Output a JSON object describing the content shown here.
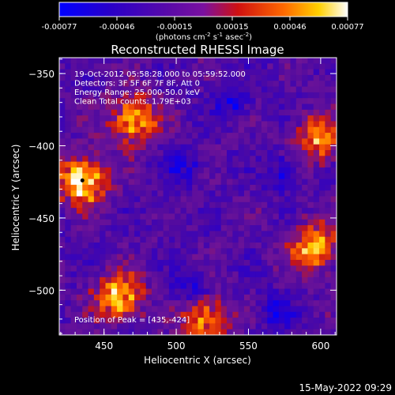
{
  "colorbar": {
    "ticks": [
      "-0.00077",
      "-0.00046",
      "-0.00015",
      "0.00015",
      "0.00046",
      "0.00077"
    ],
    "units_prefix": "(photons cm",
    "units_exp1": "-2",
    "units_mid": " s",
    "units_exp2": "-1",
    "units_mid2": " asec",
    "units_exp3": "-2",
    "units_suffix": ")"
  },
  "chart_data": {
    "type": "heatmap",
    "title": "Reconstructed RHESSI Image",
    "xlabel": "Heliocentric X (arcsec)",
    "ylabel": "Heliocentric Y (arcsec)",
    "xlim": [
      419,
      611
    ],
    "ylim": [
      -531,
      -339
    ],
    "x_ticks": [
      450,
      500,
      550,
      600
    ],
    "y_ticks": [
      -350,
      -400,
      -450,
      -500
    ],
    "colorscale_range": [
      -0.00077,
      0.00077
    ],
    "colormap": "fire (blue-purple-red-yellow-white)",
    "annotations": [
      "19-Oct-2012 05:58:28.000 to 05:59:52.000",
      "Detectors: 3F 5F 6F 7F 8F, Att 0",
      "Energy Range: 25.000-50.0 keV",
      "Clean     Total counts: 1.79E+03"
    ],
    "peak_label": "Position of Peak = [435,-424]",
    "peak": [
      435,
      -424
    ],
    "bright_sources": [
      {
        "x": 435,
        "y": -424,
        "level": 1.0
      },
      {
        "x": 470,
        "y": -382,
        "level": 0.85
      },
      {
        "x": 460,
        "y": -505,
        "level": 0.8
      },
      {
        "x": 595,
        "y": -470,
        "level": 0.8
      },
      {
        "x": 520,
        "y": -520,
        "level": 0.7
      },
      {
        "x": 600,
        "y": -395,
        "level": 0.65
      }
    ]
  },
  "timestamp": "15-May-2022 09:29"
}
